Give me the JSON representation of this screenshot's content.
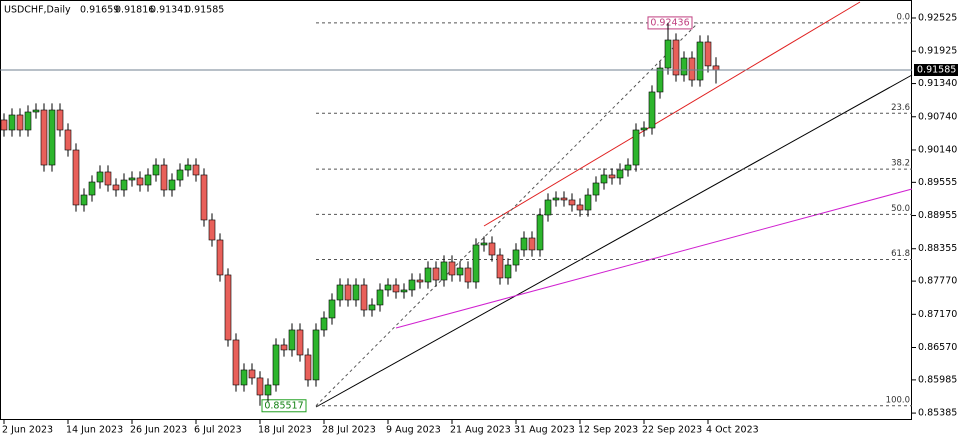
{
  "chart_data": {
    "type": "candlestick",
    "title": "USDCHF,Daily",
    "categories": [
      "2 Jun 2023",
      null,
      null,
      null,
      null,
      null,
      null,
      null,
      "14 Jun 2023",
      null,
      null,
      null,
      null,
      null,
      null,
      null,
      "26 Jun 2023",
      null,
      null,
      null,
      null,
      null,
      null,
      null,
      "6 Jul 2023",
      null,
      null,
      null,
      null,
      null,
      null,
      null,
      "18 Jul 2023",
      null,
      null,
      null,
      null,
      null,
      null,
      null,
      "28 Jul 2023",
      null,
      null,
      null,
      null,
      null,
      null,
      null,
      "9 Aug 2023",
      null,
      null,
      null,
      null,
      null,
      null,
      null,
      "21 Aug 2023",
      null,
      null,
      null,
      null,
      null,
      null,
      null,
      "31 Aug 2023",
      null,
      null,
      null,
      null,
      null,
      null,
      null,
      "12 Sep 2023",
      null,
      null,
      null,
      null,
      null,
      null,
      null,
      "22 Sep 2023",
      null,
      null,
      null,
      null,
      null,
      null,
      null,
      "4 Oct 2023",
      null
    ],
    "open": [
      0.90682,
      0.90501,
      0.90772,
      0.90501,
      0.90826,
      0.90862,
      0.89868,
      0.90862,
      0.90501,
      0.90139,
      0.89146,
      0.89326,
      0.89561,
      0.89742,
      0.89507,
      0.89417,
      0.89597,
      0.89634,
      0.89507,
      0.89688,
      0.89868,
      0.89417,
      0.89597,
      0.89778,
      0.89868,
      0.89688,
      0.88875,
      0.88513,
      0.87881,
      0.86706,
      0.85893,
      0.86164,
      0.8602,
      0.85712,
      0.85893,
      0.86616,
      0.86526,
      0.86887,
      0.86435,
      0.85984,
      0.86887,
      0.87104,
      0.87429,
      0.877,
      0.87429,
      0.877,
      0.87248,
      0.87339,
      0.8761,
      0.877,
      0.87574,
      0.8761,
      0.8779,
      0.87754,
      0.88007,
      0.8779,
      0.88116,
      0.87881,
      0.88007,
      0.87754,
      0.88423,
      0.88459,
      0.88242,
      0.87827,
      0.88061,
      0.88333,
      0.88549,
      0.88333,
      0.88965,
      0.89236,
      0.89272,
      0.89236,
      0.89146,
      0.89055,
      0.89326,
      0.89543,
      0.89688,
      0.89634,
      0.89778,
      0.89868,
      0.90501,
      0.90537,
      0.91188,
      0.91621,
      0.92127,
      0.91495,
      0.91802,
      0.91404,
      0.92091,
      0.91659
    ],
    "high": [
      0.90802,
      0.90892,
      0.90892,
      0.90946,
      0.90982,
      0.90982,
      0.90982,
      0.90982,
      0.90621,
      0.90259,
      0.89446,
      0.89681,
      0.89862,
      0.89862,
      0.89627,
      0.89717,
      0.89754,
      0.89754,
      0.89808,
      0.89988,
      0.89988,
      0.89717,
      0.89898,
      0.89988,
      0.89988,
      0.89808,
      0.88995,
      0.88633,
      0.88001,
      0.86826,
      0.86284,
      0.86284,
      0.8614,
      0.86013,
      0.86736,
      0.86736,
      0.87007,
      0.87007,
      0.86555,
      0.87007,
      0.87224,
      0.87549,
      0.8782,
      0.8782,
      0.8782,
      0.8782,
      0.87459,
      0.8773,
      0.8782,
      0.8782,
      0.8773,
      0.8791,
      0.8791,
      0.88127,
      0.88127,
      0.88236,
      0.88236,
      0.88127,
      0.88127,
      0.88543,
      0.88579,
      0.88579,
      0.88362,
      0.88181,
      0.88453,
      0.88669,
      0.88669,
      0.89085,
      0.89356,
      0.89392,
      0.89392,
      0.89356,
      0.89266,
      0.89446,
      0.89663,
      0.89808,
      0.89808,
      0.89898,
      0.89988,
      0.90621,
      0.90657,
      0.91308,
      0.91741,
      0.92436,
      0.92247,
      0.91922,
      0.91922,
      0.92211,
      0.92211,
      0.91816
    ],
    "low": [
      0.90381,
      0.90381,
      0.90381,
      0.90381,
      0.90706,
      0.89748,
      0.89748,
      0.90381,
      0.90019,
      0.89026,
      0.89026,
      0.89206,
      0.89441,
      0.89387,
      0.89297,
      0.89297,
      0.89477,
      0.89387,
      0.89387,
      0.89568,
      0.89297,
      0.89297,
      0.89477,
      0.89658,
      0.89568,
      0.88755,
      0.88393,
      0.87761,
      0.86586,
      0.85773,
      0.85773,
      0.859,
      0.85517,
      0.85592,
      0.85773,
      0.86406,
      0.86406,
      0.86315,
      0.85864,
      0.85864,
      0.86767,
      0.86984,
      0.87309,
      0.87309,
      0.87309,
      0.87128,
      0.87128,
      0.87219,
      0.8749,
      0.87454,
      0.87454,
      0.8749,
      0.87634,
      0.87634,
      0.8767,
      0.8767,
      0.87761,
      0.87761,
      0.87634,
      0.87634,
      0.88303,
      0.88122,
      0.87707,
      0.87707,
      0.87941,
      0.88213,
      0.88213,
      0.88213,
      0.88845,
      0.89116,
      0.89116,
      0.89026,
      0.88935,
      0.88935,
      0.89206,
      0.89423,
      0.89514,
      0.89514,
      0.89658,
      0.89748,
      0.90381,
      0.90417,
      0.91068,
      0.91501,
      0.91375,
      0.91375,
      0.91284,
      0.91284,
      0.91539,
      0.91341
    ],
    "close": [
      0.90501,
      0.90772,
      0.90501,
      0.90826,
      0.90862,
      0.89868,
      0.90862,
      0.90501,
      0.90139,
      0.89146,
      0.89326,
      0.89561,
      0.89742,
      0.89507,
      0.89417,
      0.89597,
      0.89634,
      0.89507,
      0.89688,
      0.89868,
      0.89417,
      0.89597,
      0.89778,
      0.89868,
      0.89688,
      0.88875,
      0.88513,
      0.87881,
      0.86706,
      0.85893,
      0.86164,
      0.8602,
      0.85712,
      0.85893,
      0.86616,
      0.86526,
      0.86887,
      0.86435,
      0.85984,
      0.86887,
      0.87104,
      0.87429,
      0.877,
      0.87429,
      0.877,
      0.87248,
      0.87339,
      0.8761,
      0.877,
      0.87574,
      0.8761,
      0.8779,
      0.87754,
      0.88007,
      0.8779,
      0.88116,
      0.87881,
      0.88007,
      0.87754,
      0.88423,
      0.88459,
      0.88242,
      0.87827,
      0.88061,
      0.88333,
      0.88549,
      0.88333,
      0.88965,
      0.89236,
      0.89272,
      0.89236,
      0.89146,
      0.89055,
      0.89326,
      0.89543,
      0.89688,
      0.89634,
      0.89778,
      0.89868,
      0.90501,
      0.90537,
      0.91188,
      0.91621,
      0.92127,
      0.91495,
      0.91802,
      0.91404,
      0.92091,
      0.91659,
      0.91585
    ],
    "up_color": "#2db52d",
    "down_color": "#e8605a",
    "ylim": [
      0.8526,
      0.9285
    ],
    "yticks": [
      0.92525,
      0.91925,
      {
        "value": 0.9134,
        "label": "0.91340"
      },
      {
        "value": 0.9074,
        "label": "0.90740"
      },
      {
        "value": 0.9014,
        "label": "0.90140"
      },
      0.89555,
      0.88955,
      0.88355,
      {
        "value": 0.8777,
        "label": "0.87770"
      },
      {
        "value": 0.8717,
        "label": "0.87170"
      },
      {
        "value": 0.8657,
        "label": "0.86570"
      },
      0.85985,
      0.85385
    ],
    "fibo": {
      "high": 0.92436,
      "low": 0.85517,
      "levels": [
        {
          "value": 0,
          "label": "0.0"
        },
        {
          "value": 23.6,
          "label": "23.6"
        },
        {
          "value": 38.2,
          "label": "38.2"
        },
        {
          "value": 50,
          "label": "50.0"
        },
        {
          "value": 61.8,
          "label": "61.8"
        },
        {
          "value": 100,
          "label": "100.0"
        }
      ]
    }
  }
}
